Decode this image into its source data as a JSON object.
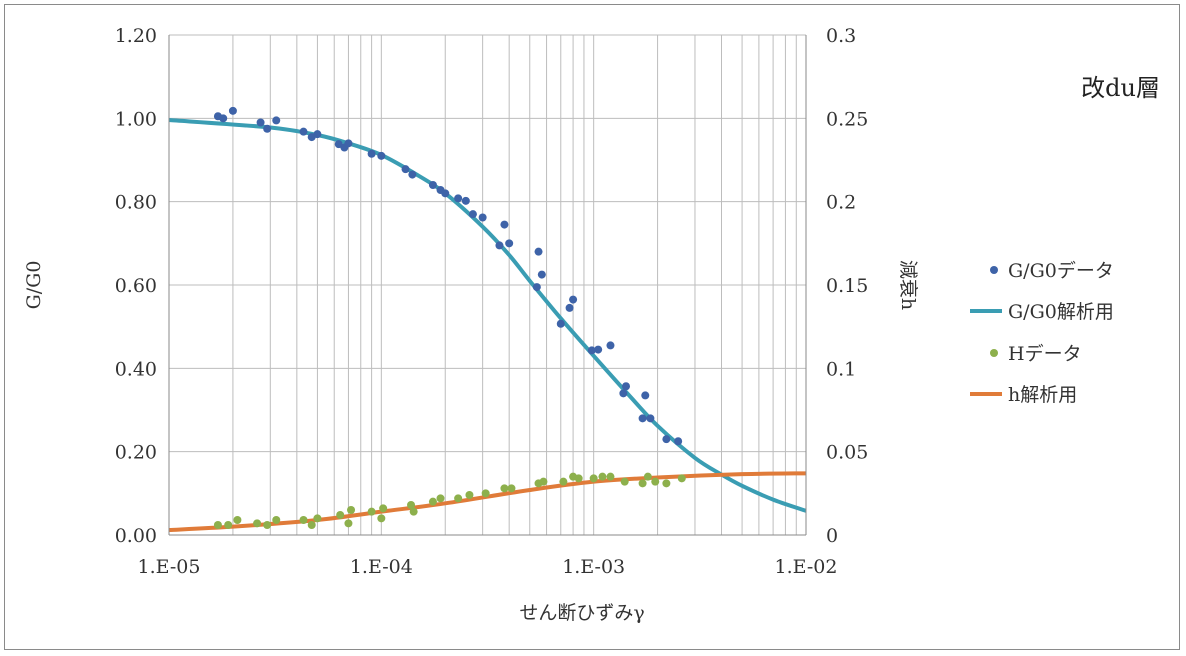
{
  "chart_data": {
    "type": "scatter",
    "title": "改du層",
    "xlabel": "せん断ひずみγ",
    "ylabel": "G/G0",
    "y2label": "減衰h",
    "x_scale": "log",
    "xlim": [
      1e-05,
      0.01
    ],
    "ylim": [
      0,
      1.2
    ],
    "y2lim": [
      0,
      0.3
    ],
    "x_ticks": [
      "1.E-05",
      "1.E-04",
      "1.E-03",
      "1.E-02"
    ],
    "y_ticks": [
      "0.00",
      "0.20",
      "0.40",
      "0.60",
      "0.80",
      "1.00",
      "1.20"
    ],
    "y2_ticks": [
      "0",
      "0.05",
      "0.1",
      "0.15",
      "0.2",
      "0.25",
      "0.3"
    ],
    "grid": true,
    "legend_position": "right",
    "colors": {
      "gg0_data": "#3E63A8",
      "gg0_fit": "#3A9DB3",
      "h_data": "#8DB04C",
      "h_fit": "#E07B39",
      "grid": "#BDBDBD",
      "axis": "#8A8A8A"
    },
    "series": [
      {
        "name": "G/G0データ",
        "kind": "scatter",
        "axis": "left",
        "points": [
          [
            1.7e-05,
            1.005
          ],
          [
            1.8e-05,
            1.0
          ],
          [
            2e-05,
            1.018
          ],
          [
            2.7e-05,
            0.99
          ],
          [
            2.9e-05,
            0.975
          ],
          [
            3.2e-05,
            0.995
          ],
          [
            4.3e-05,
            0.968
          ],
          [
            4.7e-05,
            0.955
          ],
          [
            5e-05,
            0.962
          ],
          [
            6.3e-05,
            0.938
          ],
          [
            6.7e-05,
            0.93
          ],
          [
            7e-05,
            0.94
          ],
          [
            9e-05,
            0.915
          ],
          [
            0.0001,
            0.91
          ],
          [
            0.00013,
            0.878
          ],
          [
            0.00014,
            0.865
          ],
          [
            0.000175,
            0.84
          ],
          [
            0.00019,
            0.828
          ],
          [
            0.0002,
            0.82
          ],
          [
            0.00023,
            0.808
          ],
          [
            0.00025,
            0.802
          ],
          [
            0.00027,
            0.77
          ],
          [
            0.0003,
            0.762
          ],
          [
            0.00036,
            0.695
          ],
          [
            0.00038,
            0.745
          ],
          [
            0.0004,
            0.7
          ],
          [
            0.00054,
            0.595
          ],
          [
            0.00055,
            0.68
          ],
          [
            0.00057,
            0.625
          ],
          [
            0.0007,
            0.507
          ],
          [
            0.00077,
            0.545
          ],
          [
            0.0008,
            0.565
          ],
          [
            0.00098,
            0.443
          ],
          [
            0.00105,
            0.445
          ],
          [
            0.0012,
            0.455
          ],
          [
            0.00138,
            0.34
          ],
          [
            0.00142,
            0.357
          ],
          [
            0.0017,
            0.28
          ],
          [
            0.00175,
            0.335
          ],
          [
            0.00185,
            0.28
          ],
          [
            0.0022,
            0.23
          ],
          [
            0.0025,
            0.225
          ]
        ]
      },
      {
        "name": "G/G0解析用",
        "kind": "line",
        "axis": "left",
        "points": [
          [
            1e-05,
            0.996
          ],
          [
            3e-05,
            0.978
          ],
          [
            5e-05,
            0.96
          ],
          [
            7e-05,
            0.94
          ],
          [
            0.0001,
            0.912
          ],
          [
            0.00015,
            0.862
          ],
          [
            0.0002,
            0.82
          ],
          [
            0.0003,
            0.74
          ],
          [
            0.0004,
            0.672
          ],
          [
            0.0005,
            0.61
          ],
          [
            0.0007,
            0.52
          ],
          [
            0.001,
            0.43
          ],
          [
            0.0015,
            0.33
          ],
          [
            0.002,
            0.262
          ],
          [
            0.003,
            0.185
          ],
          [
            0.004,
            0.145
          ],
          [
            0.005,
            0.118
          ],
          [
            0.007,
            0.085
          ],
          [
            0.01,
            0.058
          ]
        ]
      },
      {
        "name": "Hデータ",
        "kind": "scatter",
        "axis": "right",
        "points": [
          [
            1.7e-05,
            0.006
          ],
          [
            1.9e-05,
            0.006
          ],
          [
            2.1e-05,
            0.009
          ],
          [
            2.6e-05,
            0.007
          ],
          [
            2.9e-05,
            0.006
          ],
          [
            3.2e-05,
            0.009
          ],
          [
            4.3e-05,
            0.009
          ],
          [
            4.7e-05,
            0.006
          ],
          [
            5e-05,
            0.01
          ],
          [
            6.4e-05,
            0.012
          ],
          [
            7e-05,
            0.007
          ],
          [
            7.2e-05,
            0.015
          ],
          [
            9e-05,
            0.014
          ],
          [
            0.0001,
            0.01
          ],
          [
            0.000102,
            0.016
          ],
          [
            0.000138,
            0.018
          ],
          [
            0.000142,
            0.014
          ],
          [
            0.000175,
            0.02
          ],
          [
            0.00019,
            0.022
          ],
          [
            0.00023,
            0.022
          ],
          [
            0.00026,
            0.024
          ],
          [
            0.00031,
            0.025
          ],
          [
            0.00038,
            0.028
          ],
          [
            0.00041,
            0.028
          ],
          [
            0.00055,
            0.031
          ],
          [
            0.00058,
            0.032
          ],
          [
            0.00072,
            0.032
          ],
          [
            0.0008,
            0.035
          ],
          [
            0.00085,
            0.034
          ],
          [
            0.001,
            0.034
          ],
          [
            0.0011,
            0.035
          ],
          [
            0.0012,
            0.035
          ],
          [
            0.0014,
            0.032
          ],
          [
            0.0017,
            0.031
          ],
          [
            0.0018,
            0.035
          ],
          [
            0.00195,
            0.032
          ],
          [
            0.0022,
            0.031
          ],
          [
            0.0026,
            0.034
          ]
        ]
      },
      {
        "name": "h解析用",
        "kind": "line",
        "axis": "right",
        "points": [
          [
            1e-05,
            0.003
          ],
          [
            2e-05,
            0.005
          ],
          [
            5e-05,
            0.009
          ],
          [
            0.0001,
            0.014
          ],
          [
            0.0002,
            0.019
          ],
          [
            0.0005,
            0.027
          ],
          [
            0.001,
            0.032
          ],
          [
            0.002,
            0.0345
          ],
          [
            0.005,
            0.0365
          ],
          [
            0.01,
            0.037
          ]
        ]
      }
    ]
  }
}
